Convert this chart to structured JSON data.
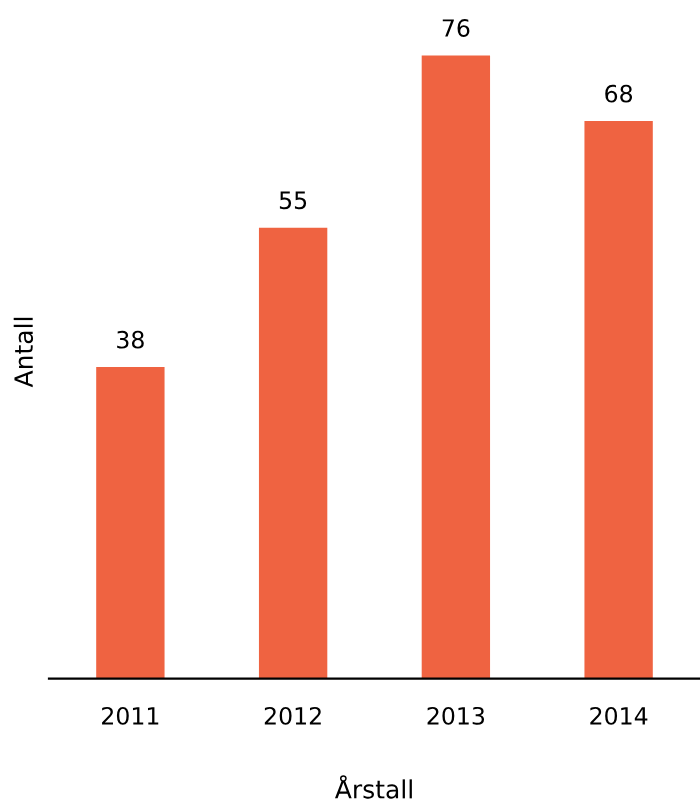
{
  "chart_data": {
    "type": "bar",
    "xlabel": "Årstall",
    "ylabel": "Antall",
    "categories": [
      "2011",
      "2012",
      "2013",
      "2014"
    ],
    "values": [
      38,
      55,
      76,
      68
    ],
    "color": "#ef6341",
    "data_labels": true,
    "grid": false,
    "legend": false
  }
}
